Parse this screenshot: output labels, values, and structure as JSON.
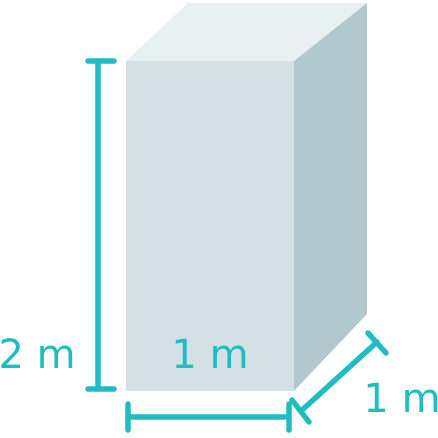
{
  "colors": {
    "accent": "#1fbcc2",
    "front_face": "#d3e0e5",
    "top_face": "#e9f0f2",
    "side_face": "#b2c8cf"
  },
  "dimensions": {
    "height_label": "2 m",
    "front_width_label": "1 m",
    "depth_label": "1 m"
  }
}
